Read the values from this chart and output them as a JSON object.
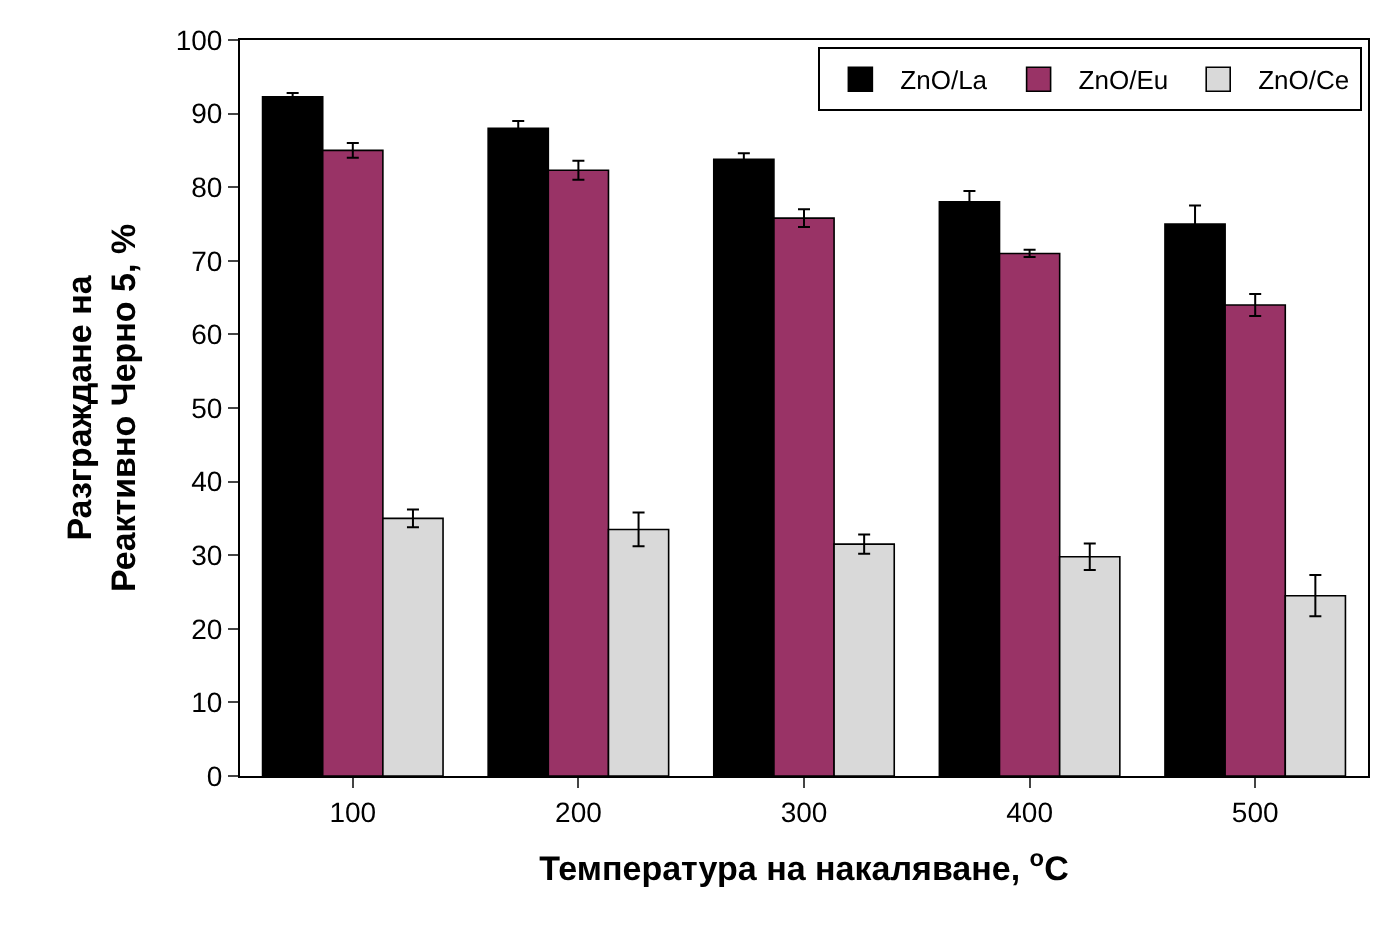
{
  "chart_data": {
    "type": "bar",
    "xlabel": "Температура на накаляване, $^{o}$C",
    "ylabel": "Разграждане на\nРеактивно Черно 5, %",
    "categories": [
      "100",
      "200",
      "300",
      "400",
      "500"
    ],
    "series": [
      {
        "name": "ZnO/La",
        "color": "#000000",
        "values": [
          92.3,
          88,
          83.8,
          78,
          75
        ],
        "errors": [
          0.5,
          1,
          0.8,
          1.5,
          2.5
        ]
      },
      {
        "name": "ZnO/Eu",
        "color": "#993366",
        "values": [
          85,
          82.3,
          75.8,
          71,
          64
        ],
        "errors": [
          1,
          1.3,
          1.2,
          0.5,
          1.5
        ]
      },
      {
        "name": "ZnO/Ce",
        "color": "#d9d9d9",
        "values": [
          35,
          33.5,
          31.5,
          29.8,
          24.5
        ],
        "errors": [
          1.2,
          2.3,
          1.3,
          1.8,
          2.8
        ]
      }
    ],
    "ylim": [
      0,
      100
    ],
    "yticks": [
      0,
      10,
      20,
      30,
      40,
      50,
      60,
      70,
      80,
      90,
      100
    ],
    "legend": "top right"
  }
}
